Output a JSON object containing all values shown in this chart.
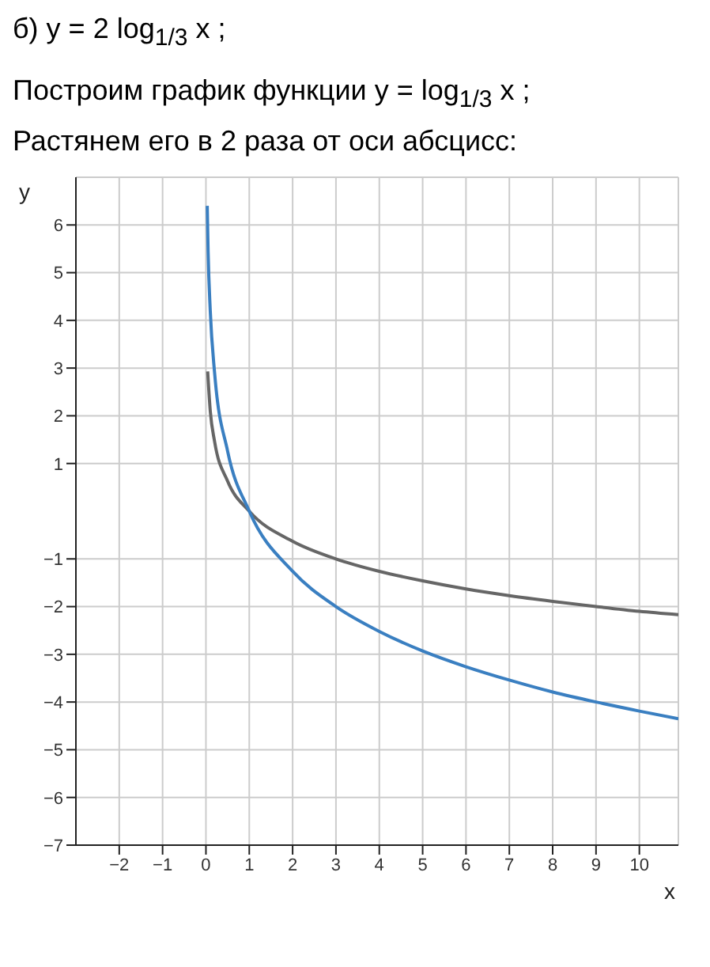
{
  "chart_data": {
    "type": "line",
    "title": "б) y = 2 log$_{1/3}$ x ;",
    "subtitle": "Построим график функции y = log$_{1/3}$ x ;",
    "annotations": [
      "Растянем его в 2 раза от оси абсцисс:"
    ],
    "xlabel": "x",
    "ylabel": "y",
    "xlim": [
      -3,
      10.9
    ],
    "xticks": [
      -2,
      -1,
      0,
      1,
      2,
      3,
      4,
      5,
      6,
      7,
      8,
      9,
      10
    ],
    "ylim": [
      -7,
      7
    ],
    "yticks": [
      -7,
      -6,
      -5,
      -4,
      -3,
      -2,
      -1,
      1,
      2,
      3,
      4,
      5,
      6
    ],
    "grid": true,
    "marker": "none",
    "line_style": "solid",
    "series": [
      {
        "color": "#666666",
        "x": [
          0.04,
          0.1,
          0.2,
          0.5,
          1,
          2,
          3,
          4,
          5,
          6,
          7,
          8,
          9,
          10,
          10.9
        ],
        "values": [
          2.93,
          2.1,
          1.46,
          0.63,
          0,
          -0.63,
          -1,
          -1.26,
          -1.46,
          -1.63,
          -1.77,
          -1.89,
          -2,
          -2.1,
          -2.17
        ]
      },
      {
        "color": "#3a7fc1",
        "x": [
          0.03,
          0.05,
          0.1,
          0.2,
          0.5,
          1,
          2,
          3,
          4,
          5,
          6,
          7,
          8,
          9,
          10,
          10.9
        ],
        "values": [
          6.4,
          5.45,
          4.2,
          2.9,
          1.26,
          0,
          -1.26,
          -2,
          -2.52,
          -2.93,
          -3.26,
          -3.54,
          -3.79,
          -4,
          -4.19,
          -4.35
        ]
      }
    ]
  }
}
